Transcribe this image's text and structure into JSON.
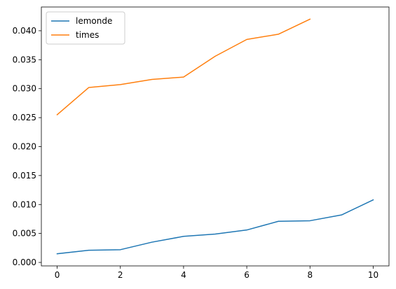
{
  "chart_data": {
    "type": "line",
    "title": "",
    "xlabel": "",
    "ylabel": "",
    "xlim": [
      -0.5,
      10.5
    ],
    "ylim": [
      -0.0006,
      0.0441
    ],
    "xticks": [
      0,
      2,
      4,
      6,
      8,
      10
    ],
    "xtick_labels": [
      "0",
      "2",
      "4",
      "6",
      "8",
      "10"
    ],
    "yticks": [
      0.0,
      0.005,
      0.01,
      0.015,
      0.02,
      0.025,
      0.03,
      0.035,
      0.04
    ],
    "ytick_labels": [
      "0.000",
      "0.005",
      "0.010",
      "0.015",
      "0.020",
      "0.025",
      "0.030",
      "0.035",
      "0.040"
    ],
    "grid": false,
    "legend_position": "top-left",
    "series": [
      {
        "name": "lemonde",
        "color": "#1f77b4",
        "x": [
          0,
          1,
          2,
          3,
          4,
          5,
          6,
          7,
          8,
          9,
          10
        ],
        "values": [
          0.0015,
          0.0021,
          0.0022,
          0.0035,
          0.0045,
          0.0049,
          0.0056,
          0.0071,
          0.0072,
          0.0082,
          0.0108
        ]
      },
      {
        "name": "times",
        "color": "#ff7f0e",
        "x": [
          0,
          1,
          2,
          3,
          4,
          5,
          6,
          7,
          8
        ],
        "values": [
          0.0255,
          0.0302,
          0.0307,
          0.0316,
          0.032,
          0.0356,
          0.0385,
          0.0394,
          0.042
        ]
      }
    ]
  }
}
